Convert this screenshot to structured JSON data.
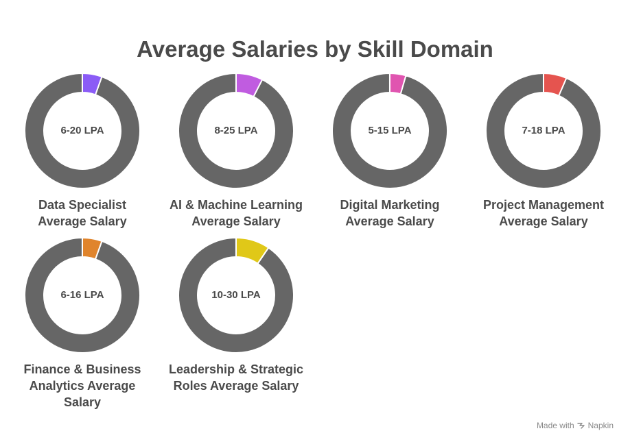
{
  "chart_data": {
    "type": "pie",
    "title": "Average Salaries by Skill Domain",
    "ring_color": "#666666",
    "domains": [
      {
        "name": "data-specialist",
        "center_label": "6-20 LPA",
        "caption": "Data Specialist Average Salary",
        "highlight_fraction": 0.055,
        "color": "#8b5cf6"
      },
      {
        "name": "ai-ml",
        "center_label": "8-25 LPA",
        "caption": "AI & Machine Learning Average Salary",
        "highlight_fraction": 0.075,
        "color": "#c05ce0"
      },
      {
        "name": "digital-marketing",
        "center_label": "5-15 LPA",
        "caption": "Digital Marketing Average Salary",
        "highlight_fraction": 0.045,
        "color": "#e055b0"
      },
      {
        "name": "project-management",
        "center_label": "7-18 LPA",
        "caption": "Project Management Average Salary",
        "highlight_fraction": 0.065,
        "color": "#e5544f"
      },
      {
        "name": "finance-business",
        "center_label": "6-16 LPA",
        "caption": "Finance & Business Analytics Average Salary",
        "highlight_fraction": 0.055,
        "color": "#e0842c"
      },
      {
        "name": "leadership-strategic",
        "center_label": "10-30 LPA",
        "caption": "Leadership & Strategic Roles Average Salary",
        "highlight_fraction": 0.095,
        "color": "#e0c818"
      }
    ]
  },
  "footer": {
    "made_with": "Made with",
    "brand": "Napkin",
    "icon": "napkin-icon"
  }
}
